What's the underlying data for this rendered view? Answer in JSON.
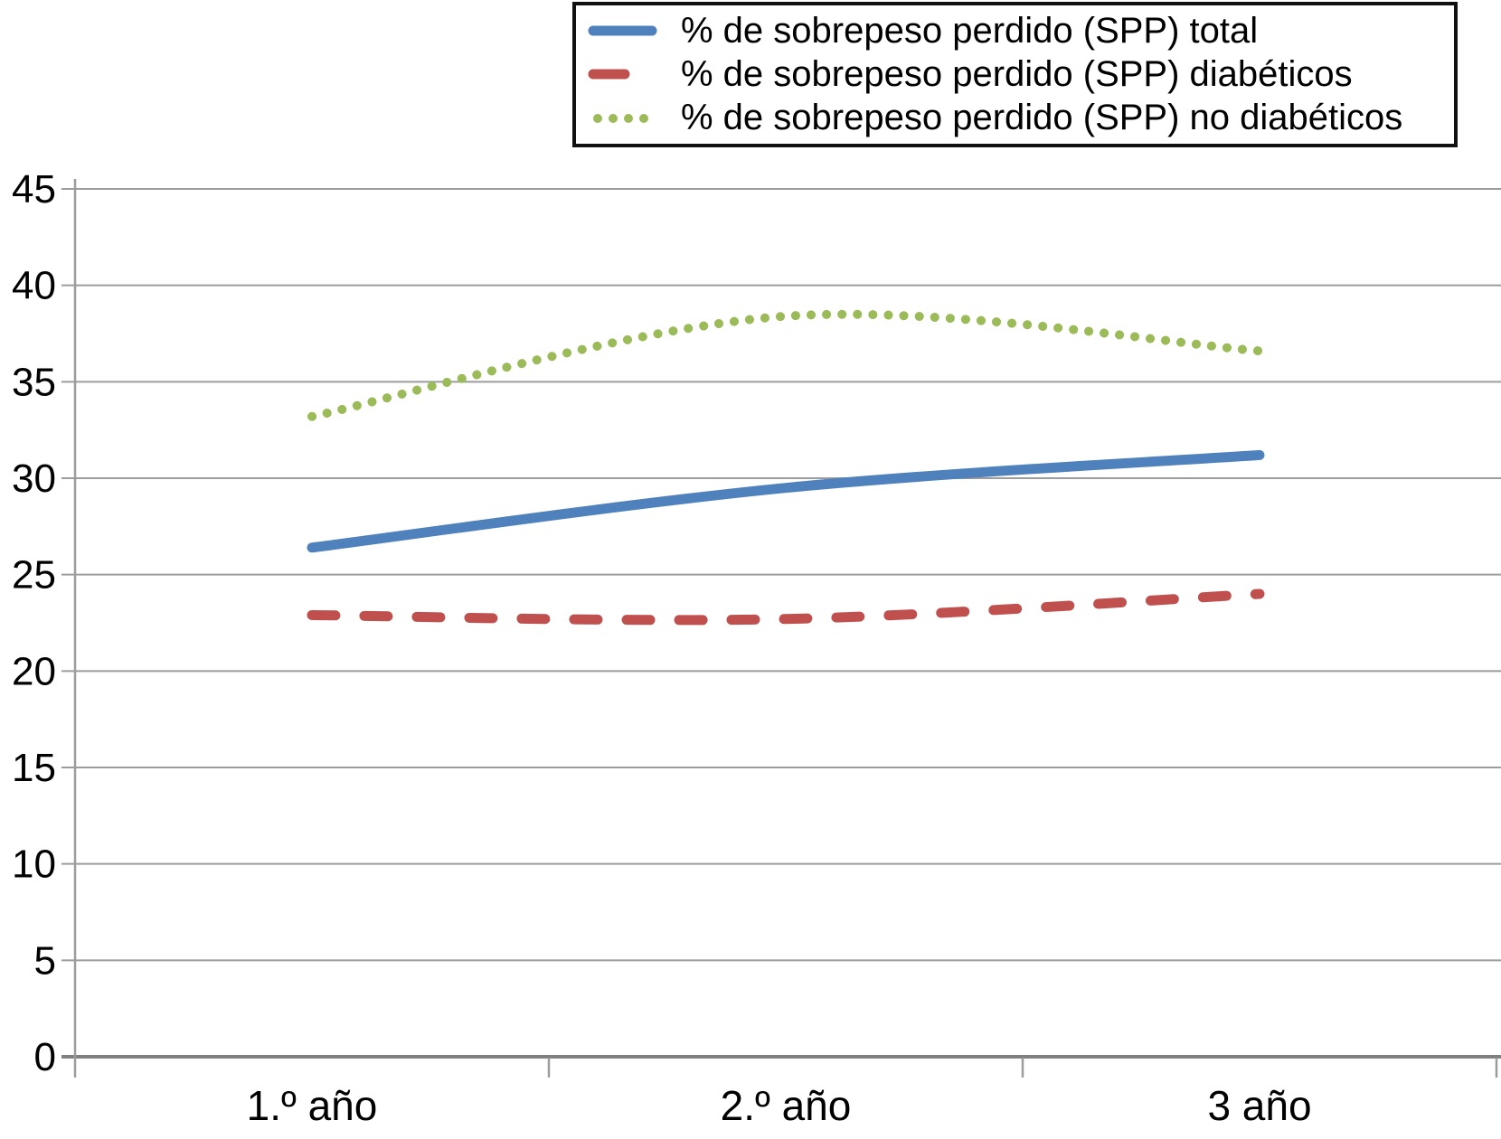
{
  "chart_data": {
    "type": "line",
    "title": "",
    "xlabel": "",
    "ylabel": "",
    "categories": [
      "1.º año",
      "2.º año",
      "3 año"
    ],
    "series": [
      {
        "name": "% de sobrepeso perdido (SPP) total",
        "values": [
          26.4,
          29.5,
          31.2
        ],
        "color": "#4f81bd",
        "style": "solid"
      },
      {
        "name": "% de sobrepeso perdido (SPP) diabéticos",
        "values": [
          22.9,
          22.7,
          24.0
        ],
        "color": "#c0504d",
        "style": "dashed"
      },
      {
        "name": "% de sobrepeso perdido (SPP) no diabéticos",
        "values": [
          33.2,
          38.4,
          36.6
        ],
        "color": "#9bbb59",
        "style": "dotted"
      }
    ],
    "ylim": [
      0,
      45
    ],
    "ytick_step": 5,
    "yticks": [
      0,
      5,
      10,
      15,
      20,
      25,
      30,
      35,
      40,
      45
    ],
    "grid": true,
    "legend_position": "top-right",
    "legend_border": true
  },
  "colors": {
    "background": "#ffffff",
    "gridline": "#9c9c9c",
    "axis_line": "#808080",
    "tick_text": "#000000",
    "legend_border": "#111111"
  }
}
